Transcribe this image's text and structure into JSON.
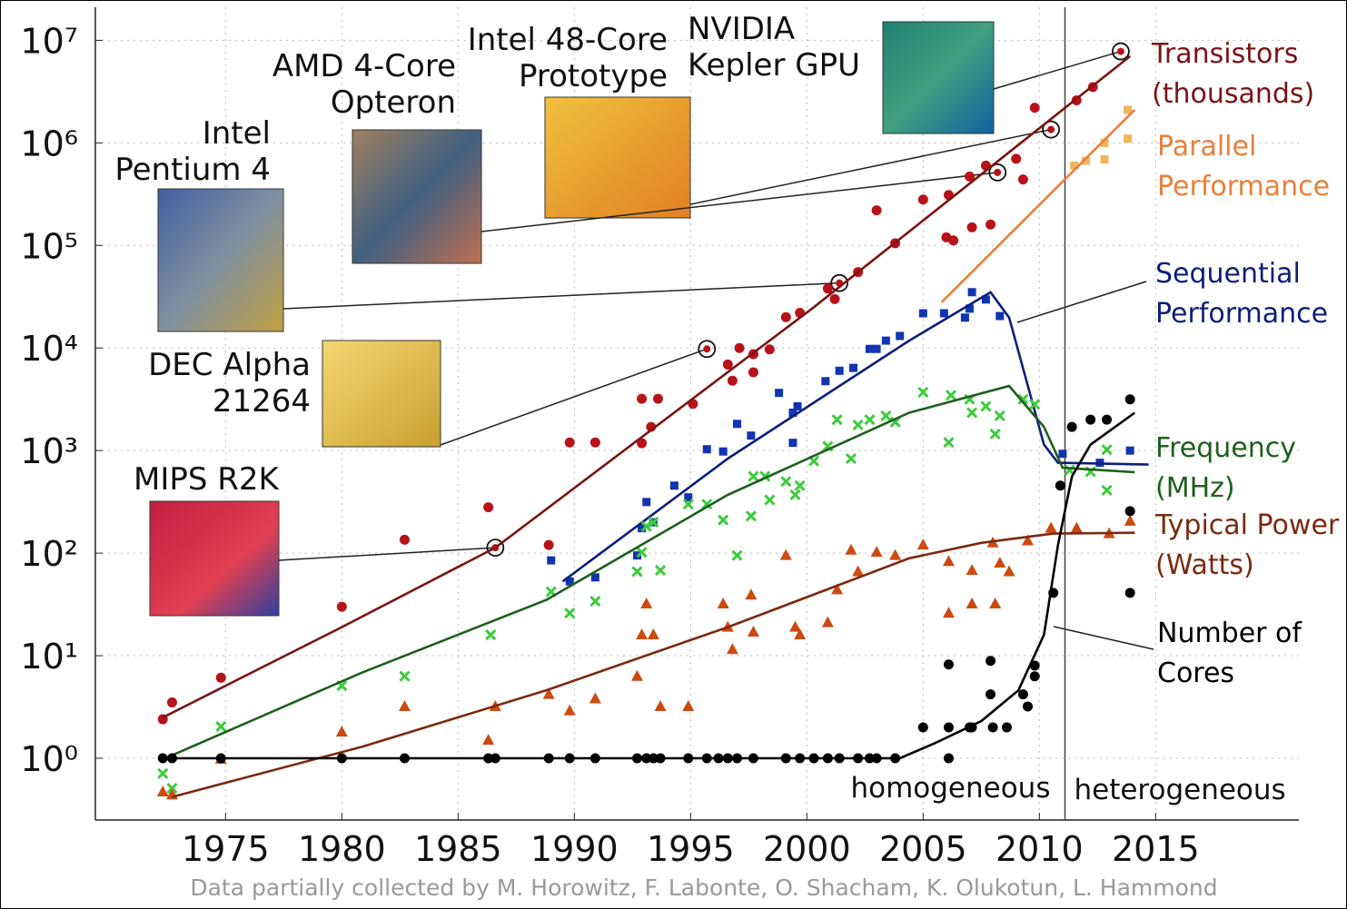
{
  "chart_data": {
    "type": "scatter",
    "yscale": "log",
    "grid": true,
    "xlim": [
      1969.4,
      2021.16
    ],
    "ylim": [
      0.25,
      21000000
    ],
    "xticks": [
      1975,
      1980,
      1985,
      1990,
      1995,
      2000,
      2005,
      2010,
      2015
    ],
    "yticks": [
      {
        "value": 1,
        "label": "10⁰"
      },
      {
        "value": 10,
        "label": "10¹"
      },
      {
        "value": 100,
        "label": "10²"
      },
      {
        "value": 1000,
        "label": "10³"
      },
      {
        "value": 10000,
        "label": "10⁴"
      },
      {
        "value": 100000,
        "label": "10⁵"
      },
      {
        "value": 1000000,
        "label": "10⁶"
      },
      {
        "value": 10000000,
        "label": "10⁷"
      }
    ],
    "series": [
      {
        "name": "Transistors\n(thousands)",
        "marker": "circle",
        "color": "#b8121a",
        "line_color": "#7a1414",
        "x": [
          1972.3,
          1972.7,
          1974.8,
          1980.0,
          1982.7,
          1986.3,
          1988.9,
          1989.8,
          1990.9,
          1992.9,
          1993.6,
          1992.9,
          1993.3,
          1995.1,
          1996.6,
          1997.1,
          1997.7,
          1996.8,
          1997.7,
          1998.4,
          1999.1,
          1999.7,
          2000.9,
          2001.2,
          2002.2,
          2003.0,
          2003.8,
          2005.0,
          2006.1,
          2006.0,
          2007.0,
          2007.7,
          2007.1,
          2007.9,
          2009.0,
          2009.8,
          2011.6,
          2012.3,
          2009.3,
          2006.3
        ],
        "values": [
          2.4,
          3.5,
          6.1,
          30,
          135,
          280,
          120,
          1200,
          1200,
          3200,
          3200,
          1180,
          1700,
          2850,
          6900,
          10000,
          8700,
          4800,
          5800,
          9700,
          20000,
          22000,
          38000,
          30000,
          55000,
          220000,
          105000,
          280000,
          310000,
          120000,
          470000,
          600000,
          150000,
          160000,
          700000,
          2200000,
          2600000,
          3500000,
          440000,
          112000
        ],
        "trend": {
          "x": [
            1972.3,
            1980.0,
            1986.6,
            2000.3,
            2013.9
          ],
          "values": [
            2.5,
            19,
            113,
            25000,
            7000000
          ]
        }
      },
      {
        "name": "Parallel\nPerformance",
        "marker": "square",
        "color": "#f2b45c",
        "line_color": "#e8803a",
        "x": [
          2011.5,
          2012.0,
          2012.8,
          2012.8,
          2013.8,
          2013.8
        ],
        "values": [
          600000,
          670000,
          690000,
          1000000,
          1100000,
          2100000
        ],
        "trend": {
          "x": [
            2005.8,
            2014.1
          ],
          "values": [
            28000,
            2100000
          ]
        }
      },
      {
        "name": "Sequential\nPerformance",
        "marker": "square",
        "color": "#1234b0",
        "line_color": "#0e1e78",
        "x": [
          1989.0,
          1989.8,
          1990.9,
          1992.7,
          1992.9,
          1993.1,
          1993.4,
          1994.3,
          1994.9,
          1995.7,
          1996.4,
          1997.0,
          1997.6,
          1998.8,
          1999.4,
          1999.6,
          1999.4,
          2000.8,
          2001.4,
          2002.0,
          2002.7,
          2003.0,
          2003.4,
          2004.0,
          2005.0,
          2005.9,
          2006.8,
          2007.1,
          2007.7,
          2008.3,
          2007.0,
          2011.0,
          2012.6,
          2013.9
        ],
        "values": [
          85,
          53,
          58,
          95,
          175,
          315,
          200,
          455,
          350,
          1030,
          980,
          1820,
          1400,
          3650,
          2340,
          2700,
          1190,
          4750,
          6000,
          6400,
          9800,
          9800,
          11800,
          13100,
          21800,
          21800,
          19800,
          35000,
          29700,
          20500,
          24200,
          930,
          760,
          1000
        ],
        "trend": {
          "x": [
            1989.5,
            1996.6,
            2004.4,
            2007.9,
            2008.7,
            2010.2,
            2010.8,
            2014.7
          ],
          "values": [
            53,
            835,
            11800,
            35000,
            19800,
            1140,
            760,
            730
          ]
        }
      },
      {
        "name": "Frequency\n(MHz)",
        "marker": "x",
        "color": "#3ccc3c",
        "line_color": "#1f5e1f",
        "x": [
          1972.3,
          1972.7,
          1974.8,
          1980.0,
          1982.7,
          1986.4,
          1989.0,
          1989.8,
          1990.9,
          1992.7,
          1992.9,
          1993.1,
          1993.4,
          1993.7,
          1994.9,
          1995.7,
          1996.4,
          1997.0,
          1997.7,
          1998.2,
          1997.6,
          1998.4,
          1999.1,
          1999.5,
          1999.7,
          2000.3,
          2000.9,
          2001.9,
          2001.3,
          2002.2,
          2002.7,
          2003.4,
          2003.8,
          2005.0,
          2006.2,
          2006.1,
          2007.0,
          2007.1,
          2007.7,
          2008.1,
          2008.3,
          2009.3,
          2009.8,
          2011.3,
          2012.2,
          2012.9,
          2012.9
        ],
        "values": [
          0.71,
          0.51,
          2.04,
          5.1,
          6.3,
          16,
          42,
          26,
          34,
          66,
          102,
          182,
          200,
          68,
          300,
          300,
          210,
          95,
          560,
          560,
          230,
          330,
          500,
          370,
          455,
          790,
          1100,
          835,
          2000,
          1780,
          2000,
          2180,
          1900,
          3700,
          3470,
          1200,
          3160,
          2340,
          2700,
          1450,
          2180,
          3160,
          2830,
          645,
          620,
          1020,
          410
        ],
        "trend": {
          "x": [
            1972.7,
            1980.9,
            1988.8,
            1996.6,
            2004.4,
            2008.7,
            2010.2,
            2011.0,
            2014.1
          ],
          "values": [
            1.07,
            6.9,
            35,
            370,
            2340,
            4270,
            1700,
            680,
            615
          ]
        }
      },
      {
        "name": "Typical Power\n(Watts)",
        "marker": "triangle",
        "color": "#cc4a12",
        "line_color": "#7a2a10",
        "x": [
          1972.3,
          1972.7,
          1974.8,
          1980.0,
          1982.7,
          1986.3,
          1986.6,
          1988.9,
          1989.8,
          1990.9,
          1992.7,
          1992.9,
          1993.1,
          1993.4,
          1993.7,
          1994.9,
          1996.4,
          1996.6,
          1996.8,
          1997.6,
          1997.7,
          1999.1,
          1999.5,
          1999.7,
          2000.9,
          2001.3,
          2001.9,
          2002.2,
          2003.0,
          2003.8,
          2005.0,
          2006.1,
          2006.1,
          2007.1,
          2007.1,
          2008.0,
          2008.1,
          2008.3,
          2008.7,
          2009.5,
          2010.5,
          2011.6,
          2013.0,
          2013.9
        ],
        "values": [
          0.47,
          0.44,
          0.98,
          1.8,
          3.2,
          1.5,
          3.2,
          4.2,
          2.9,
          3.8,
          6.3,
          16,
          32,
          16,
          3.2,
          3.2,
          32,
          19,
          11.5,
          39,
          17,
          95,
          19,
          16,
          21,
          44,
          107,
          66,
          102,
          95,
          120,
          83,
          26,
          68,
          32,
          126,
          32,
          80,
          66,
          132,
          175,
          175,
          155,
          205
        ],
        "trend": {
          "x": [
            1972.7,
            1980.9,
            1988.8,
            1996.6,
            2004.4,
            2007.5,
            2010.6,
            2014.1
          ],
          "values": [
            0.42,
            1.3,
            4.6,
            19,
            89,
            126,
            155,
            158
          ]
        }
      },
      {
        "name": "Number of\nCores",
        "marker": "circle",
        "color": "#000000",
        "line_color": "#000000",
        "x": [
          1972.3,
          1972.7,
          1974.8,
          1980.0,
          1982.7,
          1986.3,
          1986.6,
          1988.9,
          1989.8,
          1990.9,
          1992.7,
          1993.1,
          1993.4,
          1993.7,
          1994.9,
          1995.7,
          1996.2,
          1996.6,
          1997.0,
          1997.7,
          1999.1,
          1999.7,
          2000.3,
          2000.9,
          2001.4,
          2002.2,
          2002.7,
          2003.0,
          2003.8,
          2005.0,
          2006.1,
          2006.1,
          2006.1,
          2007.0,
          2007.1,
          2007.9,
          2008.0,
          2008.6,
          2007.9,
          2009.3,
          2009.5,
          2009.8,
          2009.8,
          2010.6,
          2010.9,
          2011.4,
          2012.2,
          2012.9,
          2013.9,
          2013.9,
          2013.9
        ],
        "values": [
          1,
          1,
          1,
          1,
          1,
          1,
          1,
          1,
          1,
          1,
          1,
          1,
          1,
          1,
          1,
          1,
          1,
          1,
          1,
          1,
          1,
          1,
          1,
          1,
          1,
          1,
          1,
          1,
          1,
          2,
          1,
          8.2,
          2,
          2,
          2,
          8.9,
          2,
          2,
          4.2,
          4.2,
          3.2,
          6.3,
          8,
          41,
          455,
          1700,
          2000,
          2000,
          3160,
          257,
          41
        ],
        "trend": {
          "x": [
            1972.3,
            2004.0,
            2005.5,
            2007.5,
            2009.1,
            2010.2,
            2010.8,
            2011.4,
            2012.2,
            2014.1
          ],
          "values": [
            1,
            1,
            1.4,
            2.3,
            4.6,
            16,
            120,
            560,
            1140,
            2340
          ]
        }
      }
    ],
    "annotations": [
      {
        "text": "MIPS R2K",
        "x": 1986.6,
        "y": 113
      },
      {
        "text": "DEC Alpha\n21264",
        "x": 1995.7,
        "y": 9800
      },
      {
        "text": "Intel\nPentium 4",
        "x": 2001.4,
        "y": 43000
      },
      {
        "text": "AMD 4-Core\nOpteron",
        "x": 2008.2,
        "y": 515000
      },
      {
        "text": "Intel 48-Core\nPrototype",
        "x": 2010.5,
        "y": 1350000
      },
      {
        "text": "NVIDIA\nKepler GPU",
        "x": 2013.5,
        "y": 7800000
      }
    ],
    "divider": {
      "x": 2011.1,
      "left_label": "homogeneous",
      "right_label": "heterogeneous"
    },
    "footnote": "Data partially collected by M. Horowitz, F. Labonte, O. Shacham, K. Olukotun, L. Hammond"
  }
}
